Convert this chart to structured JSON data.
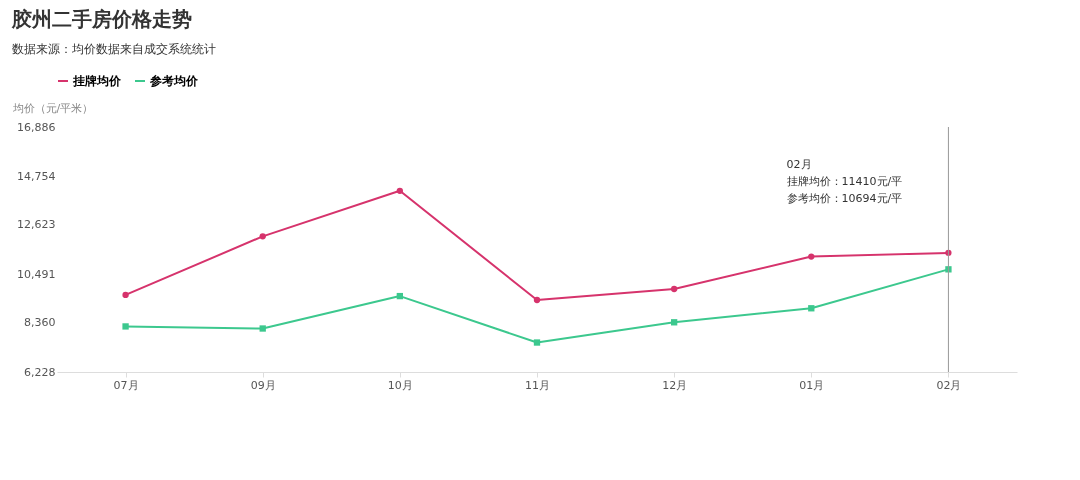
{
  "chart_data": {
    "type": "line",
    "title": "胶州二手房价格走势",
    "subtitle": "数据来源：均价数据来自成交系统统计",
    "ylabel": "均价（元/平米）",
    "categories": [
      "07月",
      "09月",
      "10月",
      "11月",
      "12月",
      "01月",
      "02月"
    ],
    "series": [
      {
        "name": "挂牌均价",
        "color": "#d6336c",
        "marker": "circle",
        "values": [
          9580,
          12130,
          14110,
          9360,
          9840,
          11250,
          11410
        ]
      },
      {
        "name": "参考均价",
        "color": "#3cc88e",
        "marker": "square",
        "values": [
          8210,
          8120,
          9530,
          7510,
          8390,
          9000,
          10694
        ]
      }
    ],
    "ylim": [
      6228,
      16886
    ],
    "yticks": [
      {
        "value": 6228,
        "label": "6,228"
      },
      {
        "value": 8360,
        "label": "8,360"
      },
      {
        "value": 10491,
        "label": "10,491"
      },
      {
        "value": 12623,
        "label": "12,623"
      },
      {
        "value": 14754,
        "label": "14,754"
      },
      {
        "value": 16886,
        "label": "16,886"
      }
    ],
    "grid": false,
    "legend": "top left",
    "ref_lines": [
      {
        "axis": "x",
        "value": "02月",
        "color": "#999999"
      }
    ],
    "annotations": [
      "02月",
      "挂牌均价：11410元/平",
      "参考均价：10694元/平"
    ]
  }
}
